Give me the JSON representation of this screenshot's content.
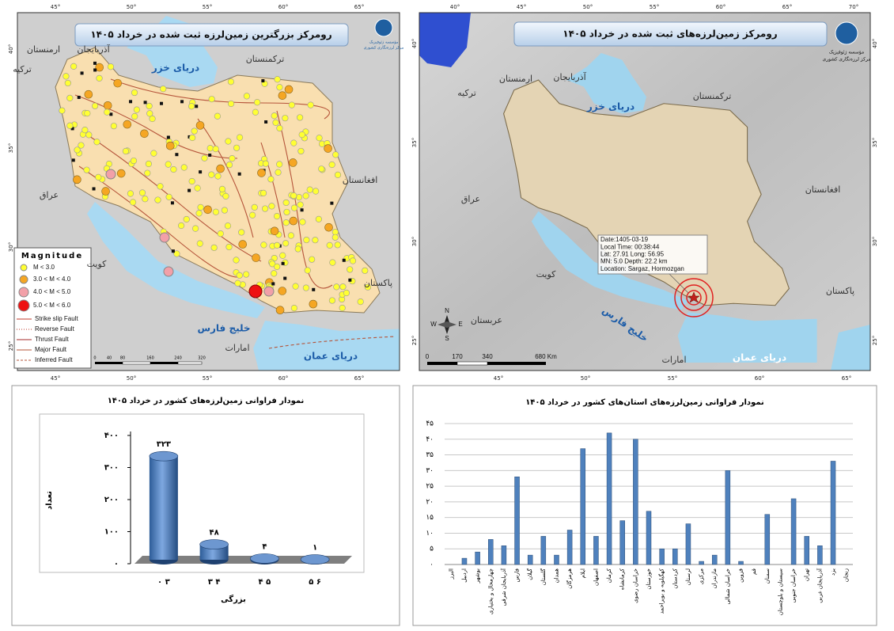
{
  "maps": [
    {
      "title": "رومرکز بزرگترین زمین‌لرزه ثبت شده در خرداد ۱۴۰۵",
      "institute": [
        "مؤسسه ژئوفیزیک",
        "مرکز لرزه‌نگاری کشوری"
      ],
      "places": [
        "ترکیه",
        "ارمنستان",
        "آذربایجان",
        "ترکمنستان",
        "دریای خزر",
        "عراق",
        "افغانستان",
        "کویت",
        "پاکستان",
        "خلیج فارس",
        "امارات",
        "دریای عمان"
      ],
      "legend_title": "Magnitude",
      "legend": [
        "M < 3.0",
        "3.0 < M < 4.0",
        "4.0 < M < 5.0",
        "5.0 < M < 6.0",
        "Strike slip Fault",
        "Reverse Fault",
        "Thrust Fault",
        "Major Fault",
        "Inferred Fault"
      ],
      "top_ticks": [
        "45°",
        "50°",
        "55°",
        "60°",
        "65°"
      ],
      "bottom_ticks": [
        "45°",
        "50°",
        "55°",
        "60°",
        "65°"
      ],
      "left_ticks": [
        "40°",
        "35°",
        "30°",
        "25°"
      ],
      "scale": [
        "0",
        "40",
        "80",
        "160",
        "240",
        "320"
      ]
    },
    {
      "title": "رومرکز زمین‌لرزه‌های ثبت شده در خرداد ۱۴۰۵",
      "institute": [
        "مؤسسه ژئوفیزیک",
        "مرکز لرزه‌نگاری کشوری"
      ],
      "places": [
        "ترکیه",
        "ارمنستان",
        "آذربایجان",
        "ترکمنستان",
        "دریای خزر",
        "عراق",
        "افغانستان",
        "کویت",
        "عربستان",
        "خلیج فارس",
        "پاکستان",
        "امارات",
        "دریای عمان"
      ],
      "event": [
        "Date:1405-03-19",
        "Local Time: 00:38:44",
        "Lat: 27.91   Long: 56.95",
        "MN: 5.0  Depth: 22.2 km",
        "Location: Sargaz, Hormozgan"
      ],
      "compass": [
        "N",
        "E",
        "S",
        "W"
      ],
      "top_ticks": [
        "40°",
        "45°",
        "50°",
        "55°",
        "60°",
        "65°",
        "70°"
      ],
      "bottom_ticks": [
        "45°",
        "50°",
        "55°",
        "60°",
        "65°"
      ],
      "left_ticks": [
        "40°",
        "35°",
        "30°",
        "25°"
      ],
      "right_ticks": [
        "40°",
        "35°",
        "30°",
        "25°"
      ],
      "scale": [
        "0",
        "170",
        "340",
        "680 Km"
      ]
    }
  ],
  "chart_data": [
    {
      "type": "bar3d",
      "title": "نمودار فراوانی زمین‌لرزه‌های کشور در خرداد ۱۴۰۵",
      "x_label": "بزرگی",
      "y_label": "تعداد",
      "categories": [
        "۰ ۳",
        "۳ ۴",
        "۴ ۵",
        "۵ ۶"
      ],
      "values": [
        323,
        48,
        4,
        1
      ],
      "value_labels": [
        "۳۲۳",
        "۴۸",
        "۴",
        "۱"
      ],
      "color": "#4a7ebb",
      "ylim": [
        0,
        400
      ],
      "yticks": [
        {
          "value": 0,
          "label": "۰"
        },
        {
          "value": 100,
          "label": "۱۰۰"
        },
        {
          "value": 200,
          "label": "۲۰۰"
        },
        {
          "value": 300,
          "label": "۳۰۰"
        },
        {
          "value": 400,
          "label": "۴۰۰"
        }
      ]
    },
    {
      "type": "bar",
      "title": "نمودار فراوانی زمین‌لرزه‌های استان‌های کشور در خرداد ۱۴۰۵",
      "categories": [
        "البرز",
        "اردبیل",
        "بوشهر",
        "چهارمحال و بختیاری",
        "آذربایجان شرقی",
        "فارس",
        "گیلان",
        "گلستان",
        "همدان",
        "هرمزگان",
        "ایلام",
        "اصفهان",
        "کرمان",
        "کرمانشاه",
        "خراسان رضوی",
        "خوزستان",
        "کهگیلویه و بویراحمد",
        "کردستان",
        "لرستان",
        "مرکزی",
        "مازندران",
        "خراسان شمالی",
        "قزوین",
        "قم",
        "سمنان",
        "سیستان و بلوچستان",
        "خراسان جنوبی",
        "تهران",
        "آذربایجان غربی",
        "یزد",
        "زنجان"
      ],
      "values": [
        0,
        2,
        4,
        8,
        6,
        28,
        3,
        9,
        3,
        11,
        37,
        9,
        42,
        14,
        40,
        17,
        5,
        5,
        13,
        1,
        3,
        30,
        1,
        0,
        16,
        0,
        21,
        9,
        6,
        33,
        0
      ],
      "color": "#4f81bd",
      "ylim": [
        0,
        45
      ],
      "yticks": [
        {
          "value": 0,
          "label": "۰"
        },
        {
          "value": 5,
          "label": "۵"
        },
        {
          "value": 10,
          "label": "۱۰"
        },
        {
          "value": 15,
          "label": "۱۵"
        },
        {
          "value": 20,
          "label": "۲۰"
        },
        {
          "value": 25,
          "label": "۲۵"
        },
        {
          "value": 30,
          "label": "۳۰"
        },
        {
          "value": 35,
          "label": "۳۵"
        },
        {
          "value": 40,
          "label": "۴۰"
        },
        {
          "value": 45,
          "label": "۴۵"
        }
      ],
      "grid": true
    }
  ]
}
